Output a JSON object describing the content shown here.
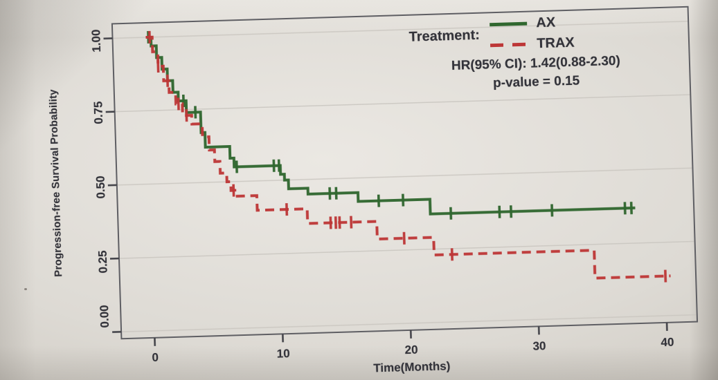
{
  "legend": {
    "title": "Treatment:",
    "items": [
      {
        "label": "AX",
        "style": "solid",
        "color": "#30672f"
      },
      {
        "label": "TRAX",
        "style": "dashed",
        "color": "#bd3737"
      }
    ]
  },
  "annotations": {
    "hr": "HR(95% CI): 1.42(0.88-2.30)",
    "pvalue": "p-value = 0.15"
  },
  "axes": {
    "x": {
      "label": "Time(Months)",
      "ticks": [
        "0",
        "10",
        "20",
        "30",
        "40"
      ],
      "tick_values": [
        0,
        10,
        20,
        30,
        40
      ]
    },
    "y": {
      "label": "Progression-free Survival Probability",
      "ticks": [
        "0.00",
        "0.25",
        "0.50",
        "0.75",
        "1.00"
      ],
      "tick_values": [
        0,
        0.25,
        0.5,
        0.75,
        1
      ]
    }
  },
  "colors": {
    "ax": "#30672f",
    "trax": "#bd3737",
    "box": "#5e5e63",
    "grid": "#c9c6c0",
    "tick": "#44444a",
    "text": "#33333a"
  },
  "chart_data": {
    "type": "line",
    "subtype": "kaplan-meier-step",
    "title": "",
    "xlabel": "Time(Months)",
    "ylabel": "Progression-free Survival Probability",
    "xlim": [
      0,
      41
    ],
    "ylim": [
      0,
      1
    ],
    "grid": "horizontal",
    "legend_position": "top-right-inside",
    "series": [
      {
        "name": "AX",
        "color": "#30672f",
        "line_style": "solid",
        "steps": [
          [
            0,
            1.0
          ],
          [
            0.4,
            0.97
          ],
          [
            0.8,
            0.93
          ],
          [
            1.2,
            0.89
          ],
          [
            1.6,
            0.85
          ],
          [
            2.0,
            0.81
          ],
          [
            2.4,
            0.78
          ],
          [
            3.0,
            0.74
          ],
          [
            4.1,
            0.67
          ],
          [
            4.4,
            0.62
          ],
          [
            6.3,
            0.58
          ],
          [
            6.6,
            0.55
          ],
          [
            10.2,
            0.52
          ],
          [
            10.5,
            0.5
          ],
          [
            10.8,
            0.47
          ],
          [
            12.3,
            0.45
          ],
          [
            16.2,
            0.42
          ],
          [
            21.8,
            0.37
          ]
        ],
        "end_time": 37.8,
        "censor_times": [
          0.2,
          2.8,
          3.7,
          6.8,
          9.7,
          10.1,
          14.0,
          14.5,
          17.8,
          19.7,
          23.4,
          27.2,
          28.1,
          31.3,
          37.0,
          37.5
        ]
      },
      {
        "name": "TRAX",
        "color": "#bd3737",
        "line_style": "dashed",
        "steps": [
          [
            0,
            1.0
          ],
          [
            0.5,
            0.95
          ],
          [
            0.9,
            0.9
          ],
          [
            1.3,
            0.85
          ],
          [
            1.7,
            0.81
          ],
          [
            2.2,
            0.77
          ],
          [
            2.7,
            0.73
          ],
          [
            3.4,
            0.7
          ],
          [
            4.2,
            0.655
          ],
          [
            4.7,
            0.61
          ],
          [
            5.1,
            0.57
          ],
          [
            5.5,
            0.53
          ],
          [
            6.0,
            0.5
          ],
          [
            6.3,
            0.47
          ],
          [
            6.6,
            0.45
          ],
          [
            8.3,
            0.4
          ],
          [
            12.2,
            0.35
          ],
          [
            17.6,
            0.29
          ],
          [
            22.0,
            0.23
          ],
          [
            34.5,
            0.135
          ]
        ],
        "end_time": 40.4,
        "censor_times": [
          0.3,
          0.9,
          1.6,
          2.4,
          3.0,
          6.5,
          10.6,
          14.0,
          14.4,
          14.7,
          15.6,
          19.7,
          23.4,
          40.0
        ]
      }
    ],
    "stats": {
      "hr": "1.42",
      "hr_ci_95": "0.88-2.30",
      "p_value": "0.15"
    }
  }
}
